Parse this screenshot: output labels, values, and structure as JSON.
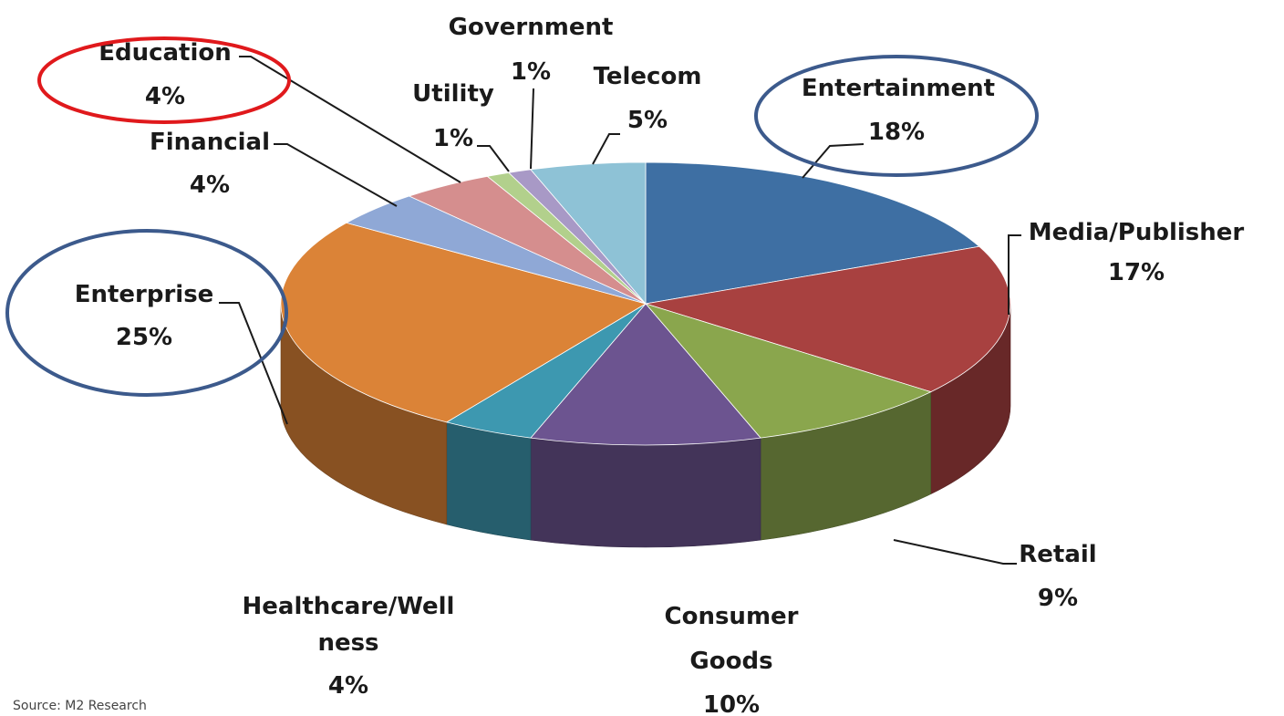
{
  "chart_data": {
    "type": "pie",
    "style": "3d-exploded-depth",
    "slices": [
      {
        "name": "Entertainment",
        "percent_label": "18%",
        "value": 18,
        "color": "#3E6FA3"
      },
      {
        "name": "Media/Publisher",
        "percent_label": "17%",
        "value": 17,
        "color": "#A84140"
      },
      {
        "name": "Retail",
        "percent_label": "9%",
        "value": 9,
        "color": "#8AA64D"
      },
      {
        "name": "Consumer Goods",
        "percent_label": "10%",
        "value": 10,
        "color": "#6C5490"
      },
      {
        "name": "Healthcare/Wellness",
        "percent_label": "4%",
        "value": 4,
        "color": "#3D98B0"
      },
      {
        "name": "Enterprise",
        "percent_label": "25%",
        "value": 25,
        "color": "#DB8337"
      },
      {
        "name": "Financial",
        "percent_label": "4%",
        "value": 4,
        "color": "#8FA8D6"
      },
      {
        "name": "Education",
        "percent_label": "4%",
        "value": 4,
        "color": "#D58E8E"
      },
      {
        "name": "Utility",
        "percent_label": "1%",
        "value": 1,
        "color": "#B2D08C"
      },
      {
        "name": "Government",
        "percent_label": "1%",
        "value": 1,
        "color": "#A899C6"
      },
      {
        "name": "Telecom",
        "percent_label": "5%",
        "value": 5,
        "color": "#8EC2D6"
      }
    ],
    "highlighted": [
      {
        "slice": "Education",
        "color": "#E0191C"
      },
      {
        "slice": "Entertainment",
        "color": "#3C5A8C"
      },
      {
        "slice": "Enterprise",
        "color": "#3C5A8C"
      }
    ]
  },
  "footer": {
    "source": "Source: M2 Research"
  }
}
